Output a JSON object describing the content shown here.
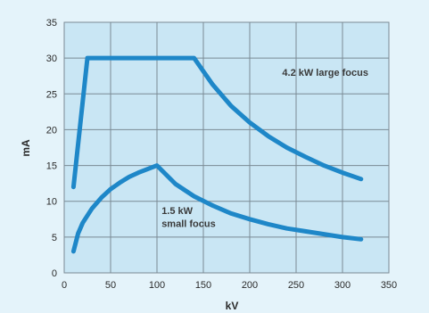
{
  "chart_data": {
    "type": "line",
    "xlabel": "kV",
    "ylabel": "mA",
    "xlim": [
      0,
      350
    ],
    "ylim": [
      0,
      35
    ],
    "x_ticks": [
      0,
      50,
      100,
      150,
      200,
      250,
      300,
      350
    ],
    "y_ticks": [
      0,
      5,
      10,
      15,
      20,
      25,
      30,
      35
    ],
    "grid": true,
    "colors": {
      "plot_background": "#c9e6f4",
      "panel_background": "#e4f3fa",
      "grid": "#7a8a94",
      "line": "#1e87c8"
    },
    "series": [
      {
        "x": [
          10,
          25,
          30,
          60,
          100,
          140,
          160,
          180,
          200,
          220,
          240,
          260,
          280,
          300,
          320
        ],
        "y": [
          12,
          30,
          30,
          30,
          30,
          30,
          26.3,
          23.3,
          21,
          19.1,
          17.5,
          16.2,
          15,
          14,
          13.1
        ]
      },
      {
        "x": [
          10,
          15,
          20,
          30,
          40,
          50,
          60,
          70,
          80,
          90,
          100,
          120,
          140,
          160,
          180,
          200,
          220,
          240,
          260,
          280,
          300,
          320
        ],
        "y": [
          3,
          5.5,
          7,
          9,
          10.5,
          11.7,
          12.6,
          13.4,
          14,
          14.5,
          15,
          12.4,
          10.7,
          9.4,
          8.3,
          7.5,
          6.8,
          6.2,
          5.8,
          5.4,
          5,
          4.7
        ]
      }
    ],
    "annotations": [
      {
        "text": "4.2 kW large focus",
        "x": 235,
        "y": 27.5
      },
      {
        "text": "1.5 kW",
        "x": 105,
        "y": 8.2
      },
      {
        "text": "small focus",
        "x": 105,
        "y": 6.4
      }
    ]
  }
}
